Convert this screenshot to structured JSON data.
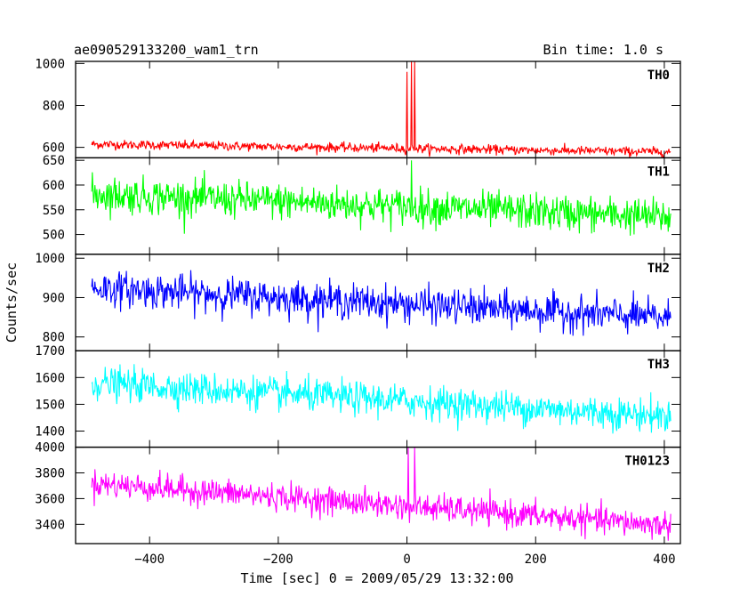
{
  "chart_data": {
    "type": "line",
    "title": "ae090529133200_wam1_trn",
    "subtitle": "Bin time: 1.0 s",
    "xlabel": "Time [sec] 0 = 2009/05/29 13:32:00",
    "ylabel": "Counts/sec",
    "xlim": [
      -515,
      425
    ],
    "x_ticks": [
      -400,
      -200,
      0,
      200,
      400
    ],
    "x_tick_labels": [
      "−400",
      "−200",
      "0",
      "200",
      "400"
    ],
    "x_range": [
      -490,
      410
    ],
    "panels": [
      {
        "name": "TH0",
        "color": "#ff0000",
        "ylim": [
          550,
          1010
        ],
        "y_ticks": [
          600,
          800,
          1000
        ],
        "y_tick_labels": [
          "600",
          "800",
          "1000"
        ],
        "start_level": 615,
        "end_level": 578,
        "noise_amplitude": 20,
        "spikes": [
          {
            "x": 0,
            "y": 960
          },
          {
            "x": 7,
            "y": 1010
          },
          {
            "x": 12,
            "y": 1010
          }
        ]
      },
      {
        "name": "TH1",
        "color": "#00ff00",
        "ylim": [
          460,
          655
        ],
        "y_ticks": [
          500,
          550,
          600,
          650
        ],
        "y_tick_labels": [
          "500",
          "550",
          "600",
          "650"
        ],
        "start_level": 582,
        "end_level": 535,
        "noise_amplitude": 33,
        "spikes": [
          {
            "x": 7,
            "y": 650
          }
        ]
      },
      {
        "name": "TH2",
        "color": "#0000ff",
        "ylim": [
          765,
          1010
        ],
        "y_ticks": [
          800,
          900,
          1000
        ],
        "y_tick_labels": [
          "800",
          "900",
          "1000"
        ],
        "start_level": 925,
        "end_level": 848,
        "noise_amplitude": 40,
        "spikes": []
      },
      {
        "name": "TH3",
        "color": "#00ffff",
        "ylim": [
          1340,
          1700
        ],
        "y_ticks": [
          1400,
          1500,
          1600,
          1700
        ],
        "y_tick_labels": [
          "1400",
          "1500",
          "1600",
          "1700"
        ],
        "start_level": 1580,
        "end_level": 1455,
        "noise_amplitude": 55,
        "spikes": []
      },
      {
        "name": "TH0123",
        "color": "#ff00ff",
        "ylim": [
          3250,
          4000
        ],
        "y_ticks": [
          3400,
          3600,
          3800,
          4000
        ],
        "y_tick_labels": [
          "3400",
          "3600",
          "3800",
          "4000"
        ],
        "start_level": 3720,
        "end_level": 3390,
        "noise_amplitude": 95,
        "spikes": [
          {
            "x": 2,
            "y": 4000
          },
          {
            "x": 12,
            "y": 4000
          }
        ]
      }
    ]
  }
}
